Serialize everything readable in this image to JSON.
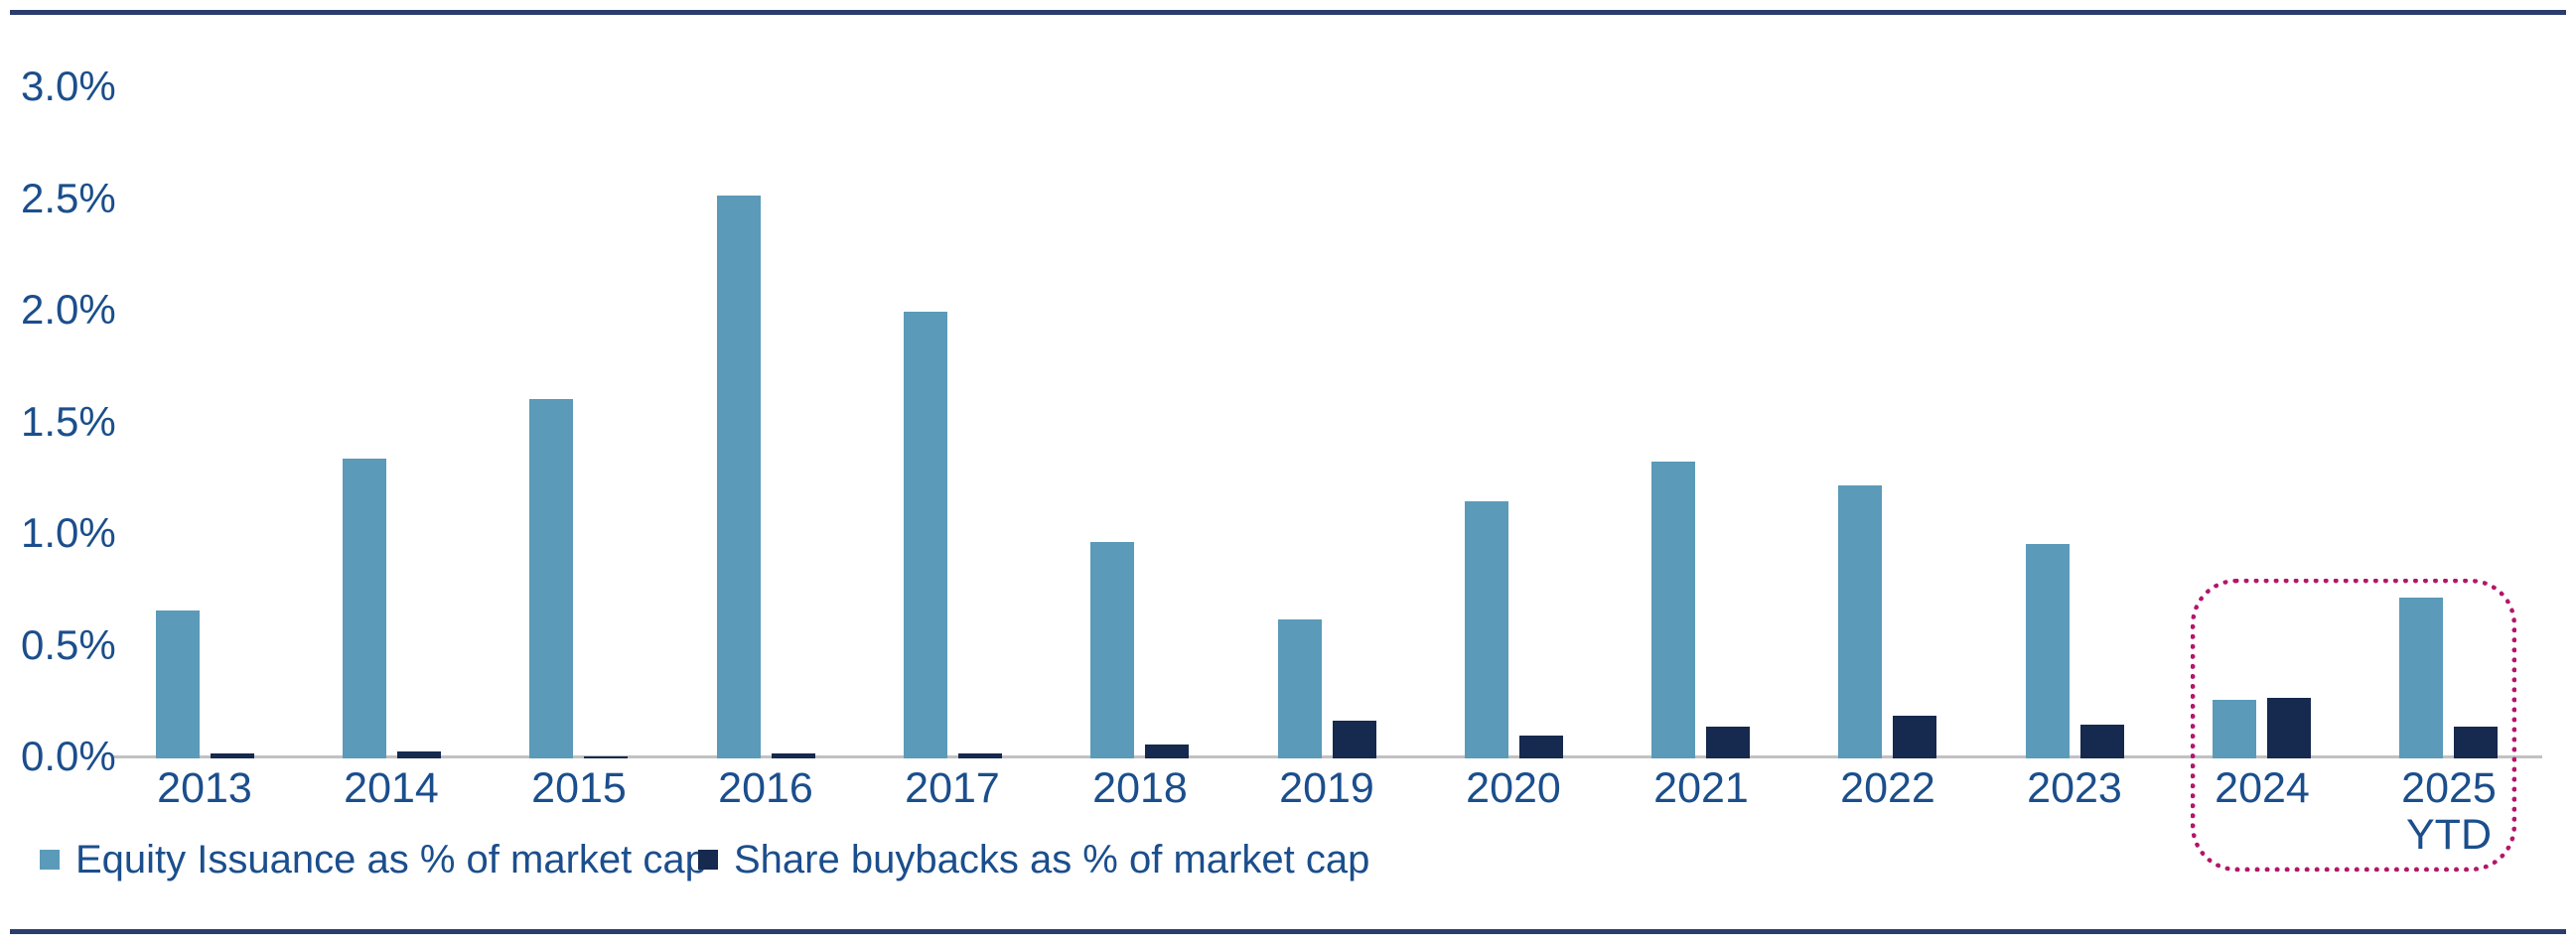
{
  "page": {
    "background": "#FFFFFF",
    "border_rule_color": "#2B3D6D"
  },
  "chart_data": {
    "type": "bar",
    "title": "",
    "unit": "% of market cap",
    "categories": [
      "2013",
      "2014",
      "2015",
      "2016",
      "2017",
      "2018",
      "2019",
      "2020",
      "2021",
      "2022",
      "2023",
      "2024",
      "2025\nYTD"
    ],
    "series": [
      {
        "name": "Equity Issuance as % of market cap",
        "slug": "equity-issuance",
        "color": "#5B9AB8",
        "values": [
          0.66,
          1.34,
          1.61,
          2.52,
          2.0,
          0.97,
          0.62,
          1.15,
          1.33,
          1.22,
          0.96,
          0.26,
          0.72
        ]
      },
      {
        "name": "Share buybacks as % of market cap",
        "slug": "share-buybacks",
        "color": "#16294E",
        "values": [
          0.02,
          0.03,
          0.01,
          0.02,
          0.02,
          0.06,
          0.17,
          0.1,
          0.14,
          0.19,
          0.15,
          0.27,
          0.14
        ]
      }
    ],
    "xlabel": "",
    "ylabel": "",
    "ylim": [
      0,
      3.0
    ],
    "yticks": [
      {
        "label": "3.0%",
        "value": 3.0
      },
      {
        "label": "2.5%",
        "value": 2.5
      },
      {
        "label": "2.0%",
        "value": 2.0
      },
      {
        "label": "1.5%",
        "value": 1.5
      },
      {
        "label": "1.0%",
        "value": 1.0
      },
      {
        "label": "0.5%",
        "value": 0.5
      },
      {
        "label": "0.0%",
        "value": 0.0
      }
    ],
    "grid": false,
    "legend_position": "bottom-left",
    "axis_line_color": "#C1C1C1",
    "text_color": "#1B4E8C",
    "highlight": {
      "categories": [
        "2024",
        "2025 YTD"
      ],
      "start_index": 11,
      "end_index": 12,
      "style": "dotted-rounded-box",
      "color": "#B4156B"
    }
  }
}
